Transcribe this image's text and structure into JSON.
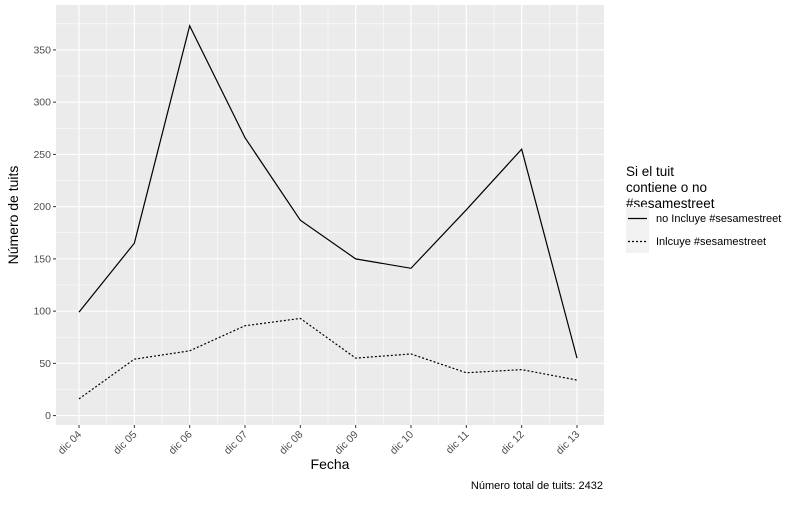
{
  "chart_data": {
    "type": "line",
    "title": "",
    "xlabel": "Fecha",
    "ylabel": "Número de tuits",
    "caption": "Número total de tuits: 2432",
    "categories": [
      "dic 04",
      "dic 05",
      "dic 06",
      "dic 07",
      "dic 08",
      "dic 09",
      "dic 10",
      "dic 11",
      "dic 12",
      "dic 13"
    ],
    "yticks": [
      0,
      50,
      100,
      150,
      200,
      250,
      300,
      350
    ],
    "ylim": [
      -9,
      393
    ],
    "grid": true,
    "legend": {
      "title_lines": [
        "Si el tuit",
        "contiene o no",
        "#sesamestreet"
      ],
      "placement": "right"
    },
    "series": [
      {
        "name": "no Incluye #sesamestreet",
        "linetype": "solid",
        "color": "#000000",
        "values": [
          99,
          165,
          373,
          266,
          187,
          150,
          141,
          197,
          255,
          55
        ]
      },
      {
        "name": "Inlcuye #sesamestreet",
        "linetype": "dotted",
        "color": "#000000",
        "values": [
          16,
          54,
          62,
          86,
          93,
          55,
          59,
          41,
          44,
          34
        ]
      }
    ],
    "panel_color": "#EBEBEB",
    "grid_color": "#FFFFFF"
  }
}
